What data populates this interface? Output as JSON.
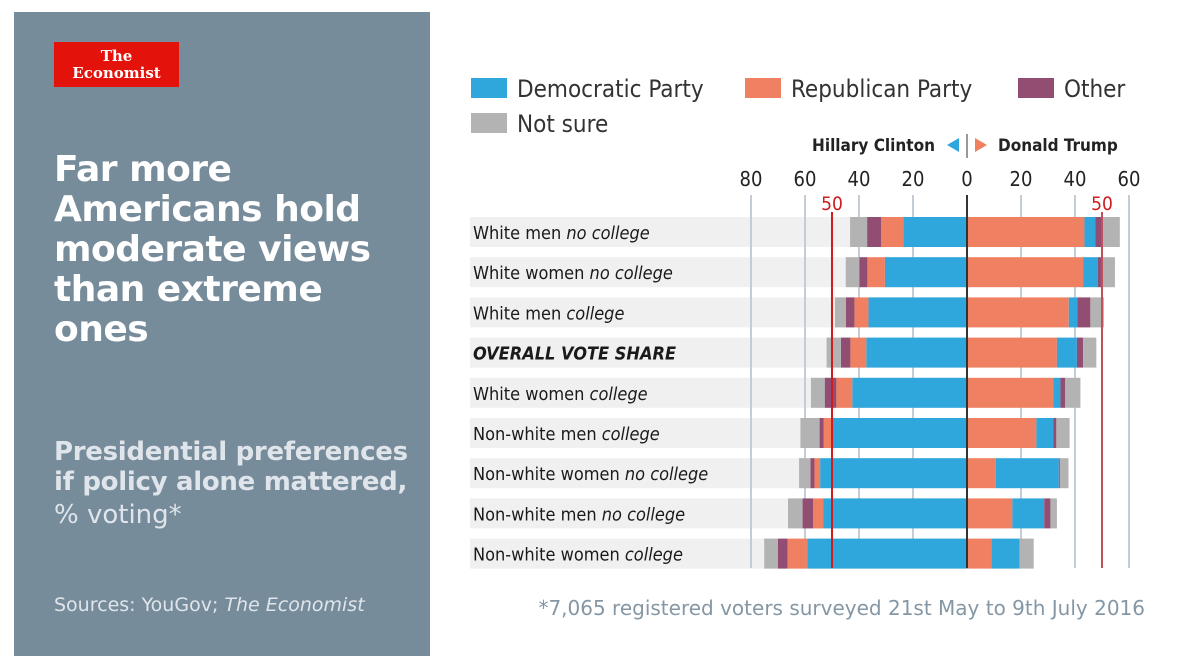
{
  "logo": {
    "line1": "The",
    "line2": "Economist"
  },
  "title": "Far more Americans hold moderate views than extreme ones",
  "subtitle": "Presidential preferences if policy alone mattered,",
  "unit": "% voting*",
  "source": {
    "prefix": "Sources: YouGov; ",
    "italic": "The Economist"
  },
  "footnote": "*7,065 registered voters surveyed 21st May to 9th July 2016",
  "colors": {
    "panel": "#778c9b",
    "democratic": "#2fa6dc",
    "republican": "#ef8061",
    "other": "#924d73",
    "not_sure": "#b3b3b3",
    "row_bg": "#f0f0f0",
    "grid": "#c4cdd5",
    "reference": "#d01c1c"
  },
  "chart_data": {
    "type": "bar",
    "orientation": "horizontal diverging stacked",
    "legend": [
      "Democratic Party",
      "Republican Party",
      "Other",
      "Not sure"
    ],
    "legend_placement": "top",
    "left_side_label": "Hillary Clinton",
    "right_side_label": "Donald Trump",
    "left_ticks": [
      "80",
      "60",
      "40",
      "20"
    ],
    "center_tick": "0",
    "right_ticks": [
      "20",
      "40",
      "60"
    ],
    "reference_lines": [
      {
        "side": "left",
        "value": 50,
        "label": "50"
      },
      {
        "side": "right",
        "value": 50,
        "label": "50"
      }
    ],
    "xlim_left": [
      0,
      80
    ],
    "xlim_right": [
      0,
      60
    ],
    "grid": true,
    "categories": [
      {
        "main": "White men",
        "qualifier": "no college"
      },
      {
        "main": "White women",
        "qualifier": "no college"
      },
      {
        "main": "White men",
        "qualifier": "college"
      },
      {
        "main": "OVERALL VOTE SHARE",
        "qualifier": ""
      },
      {
        "main": "White women",
        "qualifier": "college"
      },
      {
        "main": "Non-white men",
        "qualifier": "college"
      },
      {
        "main": "Non-white women",
        "qualifier": "no college"
      },
      {
        "main": "Non-white men",
        "qualifier": "no college"
      },
      {
        "main": "Non-white women",
        "qualifier": "college"
      }
    ],
    "hillary_clinton": {
      "Democratic Party": [
        23.5,
        30.4,
        36.5,
        37.3,
        42.5,
        49.9,
        54.4,
        53.3,
        59.1
      ],
      "Republican Party": [
        8.3,
        6.5,
        5.2,
        5.9,
        5.9,
        3.2,
        2.1,
        3.7,
        7.4
      ],
      "Other": [
        5.2,
        3.0,
        3.2,
        3.5,
        4.3,
        1.5,
        1.5,
        3.9,
        3.5
      ],
      "Not sure": [
        6.3,
        5.0,
        4.0,
        5.3,
        5.1,
        7.1,
        4.2,
        5.4,
        5.1
      ]
    },
    "donald_trump": {
      "Republican Party": [
        43.5,
        43.0,
        37.7,
        33.3,
        31.9,
        25.7,
        10.7,
        16.8,
        9.0
      ],
      "Democratic Party": [
        4.1,
        5.4,
        3.2,
        7.4,
        2.7,
        6.2,
        23.3,
        11.8,
        10.5
      ],
      "Other": [
        2.6,
        1.8,
        4.8,
        2.3,
        1.8,
        1.2,
        0.4,
        2.3,
        0
      ],
      "Not sure": [
        6.4,
        4.6,
        5.0,
        4.9,
        5.6,
        4.9,
        3.2,
        2.4,
        5.2
      ]
    }
  }
}
